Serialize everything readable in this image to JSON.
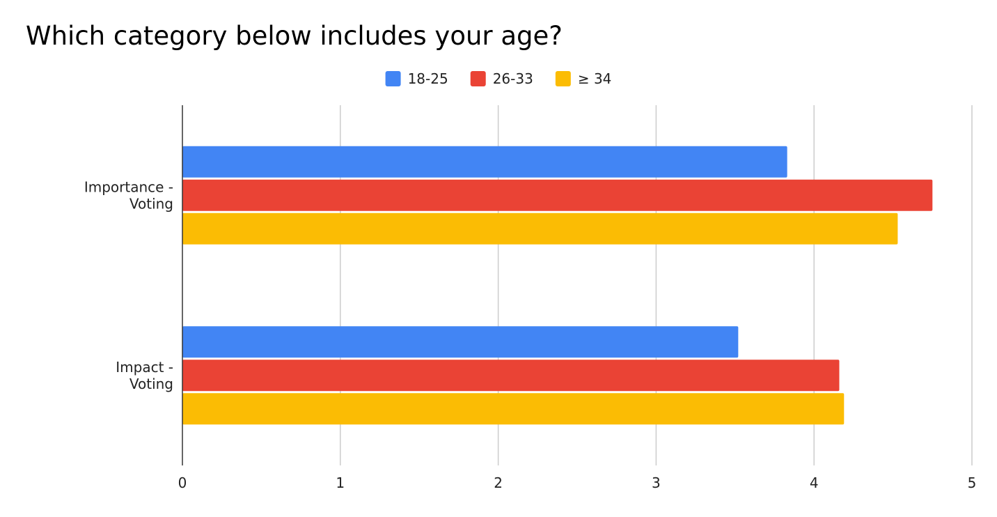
{
  "chart_data": {
    "type": "bar",
    "orientation": "horizontal",
    "title": "Which category below includes your age?",
    "categories": [
      "Importance - Voting",
      "Impact - Voting"
    ],
    "category_lines": [
      [
        "Importance -",
        "Voting"
      ],
      [
        "Impact -",
        "Voting"
      ]
    ],
    "series": [
      {
        "name": "18-25",
        "color": "#4285f4",
        "values": [
          3.83,
          3.52
        ]
      },
      {
        "name": "26-33",
        "color": "#ea4335",
        "values": [
          4.75,
          4.16
        ]
      },
      {
        "name": "≥ 34",
        "color": "#fbbc04",
        "values": [
          4.53,
          4.19
        ]
      }
    ],
    "xlim": [
      0,
      5
    ],
    "xticks": [
      "0",
      "1",
      "2",
      "3",
      "4",
      "5"
    ],
    "xlabel": "",
    "ylabel": "",
    "grid": true,
    "legend_position": "top"
  }
}
